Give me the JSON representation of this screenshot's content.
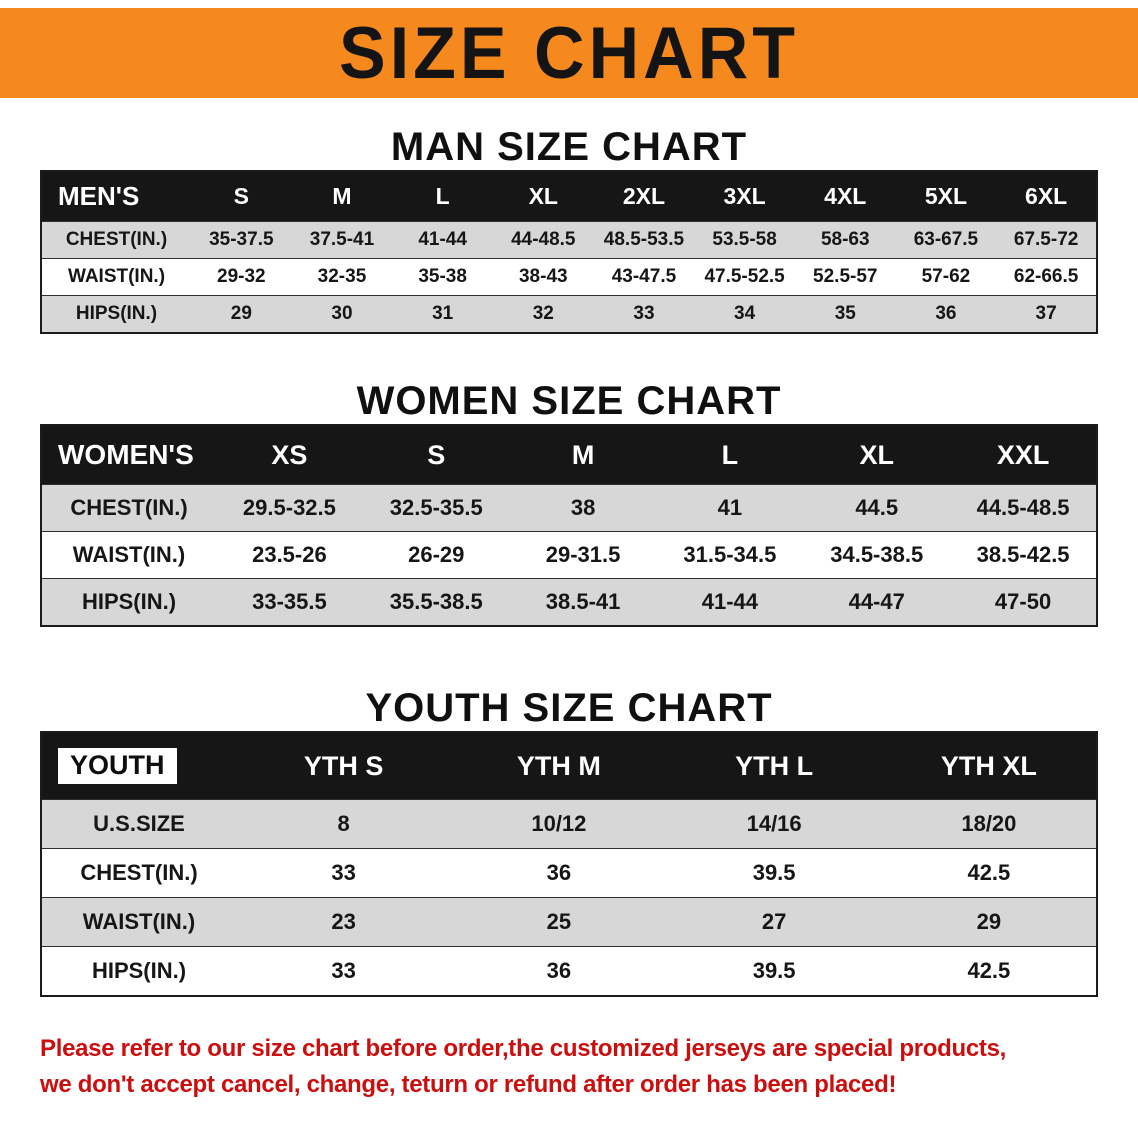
{
  "banner": {
    "title": "SIZE CHART"
  },
  "man": {
    "heading": "MAN SIZE CHART",
    "table": {
      "header": [
        "MEN'S",
        "S",
        "M",
        "L",
        "XL",
        "2XL",
        "3XL",
        "4XL",
        "5XL",
        "6XL"
      ],
      "rows": [
        [
          "CHEST(IN.)",
          "35-37.5",
          "37.5-41",
          "41-44",
          "44-48.5",
          "48.5-53.5",
          "53.5-58",
          "58-63",
          "63-67.5",
          "67.5-72"
        ],
        [
          "WAIST(IN.)",
          "29-32",
          "32-35",
          "35-38",
          "38-43",
          "43-47.5",
          "47.5-52.5",
          "52.5-57",
          "57-62",
          "62-66.5"
        ],
        [
          "HIPS(IN.)",
          "29",
          "30",
          "31",
          "32",
          "33",
          "34",
          "35",
          "36",
          "37"
        ]
      ]
    }
  },
  "women": {
    "heading": "WOMEN SIZE CHART",
    "table": {
      "header": [
        "WOMEN'S",
        "XS",
        "S",
        "M",
        "L",
        "XL",
        "XXL"
      ],
      "rows": [
        [
          "CHEST(IN.)",
          "29.5-32.5",
          "32.5-35.5",
          "38",
          "41",
          "44.5",
          "44.5-48.5"
        ],
        [
          "WAIST(IN.)",
          "23.5-26",
          "26-29",
          "29-31.5",
          "31.5-34.5",
          "34.5-38.5",
          "38.5-42.5"
        ],
        [
          "HIPS(IN.)",
          "33-35.5",
          "35.5-38.5",
          "38.5-41",
          "41-44",
          "44-47",
          "47-50"
        ]
      ]
    }
  },
  "youth": {
    "heading": "YOUTH SIZE CHART",
    "table": {
      "highlight_corner": true,
      "header": [
        "YOUTH",
        "YTH S",
        "YTH M",
        "YTH L",
        "YTH XL"
      ],
      "rows": [
        [
          "U.S.SIZE",
          "8",
          "10/12",
          "14/16",
          "18/20"
        ],
        [
          "CHEST(IN.)",
          "33",
          "36",
          "39.5",
          "42.5"
        ],
        [
          "WAIST(IN.)",
          "23",
          "25",
          "27",
          "29"
        ],
        [
          "HIPS(IN.)",
          "33",
          "36",
          "39.5",
          "42.5"
        ]
      ]
    }
  },
  "footer": {
    "line1": "Please refer to our size chart before order,the customized jerseys are special products,",
    "line2": "we don't accept cancel, change, teturn or refund after order has been placed!"
  },
  "colors": {
    "banner_orange": "#f6891e",
    "table_header_black": "#161616",
    "row_gray": "#d7d7d7",
    "note_red": "#cb0e0e"
  }
}
